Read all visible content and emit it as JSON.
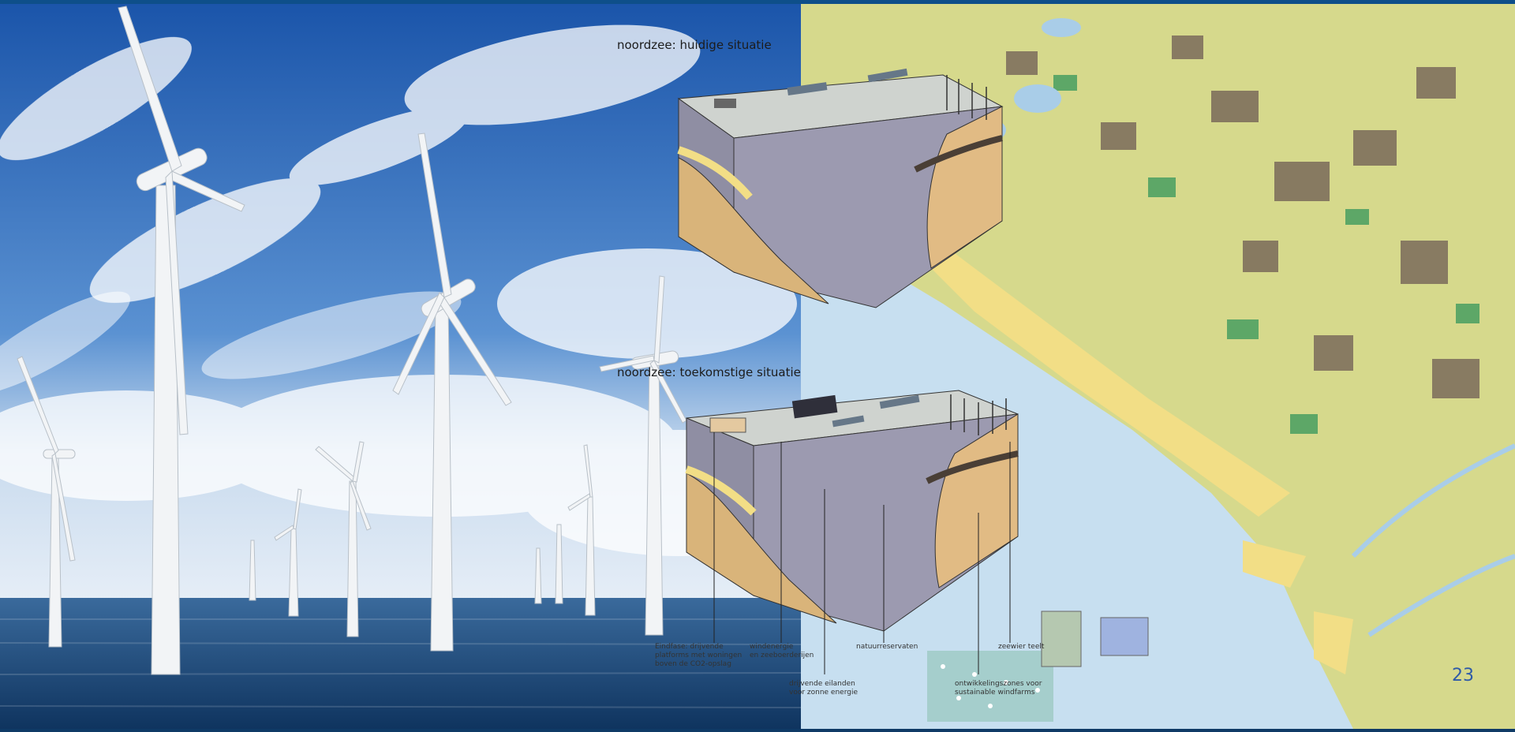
{
  "slide": {
    "page_number": "23"
  },
  "diagram": {
    "current_title": "noordzee: huidige situatie",
    "future_title": "noordzee: toekomstige situatie",
    "annotations": [
      {
        "text": "Eindfase: drijvende\nplatforms met woningen\nboven de CO2-opslag"
      },
      {
        "text": "windenergie\nen zeeboerderijen"
      },
      {
        "text": "natuurreservaten"
      },
      {
        "text": "zeewier teelt"
      },
      {
        "text": "drijvende eilanden\nvoor zonne energie"
      },
      {
        "text": "ontwikkelingszones voor\nsustainable windfarms"
      }
    ]
  },
  "colors": {
    "sky_top": "#1f5db3",
    "sea": "#1c4f86",
    "map_land": "#d6d98c",
    "map_water": "#c7dff0",
    "beach": "#f2de86",
    "urban": "#7a6a5a",
    "block_side": "#9c9ab0",
    "block_top": "#cfd3cf",
    "page_number": "#2e5aa8"
  }
}
